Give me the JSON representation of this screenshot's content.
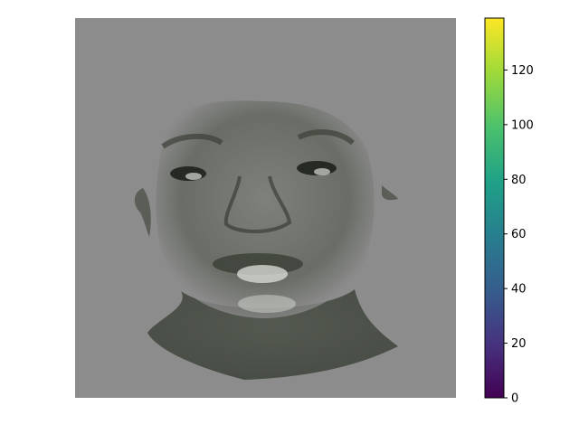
{
  "chart_data": {
    "type": "heatmap",
    "title": "",
    "xlabel": "",
    "ylabel": "",
    "axes_visible": false,
    "image_description_hidden": true,
    "background_value_gray": "#8c8c8c",
    "colorbar": {
      "colormap": "viridis",
      "range": [
        0,
        139
      ],
      "ticks": [
        0,
        20,
        40,
        60,
        80,
        100,
        120
      ],
      "tick_labels": [
        "0",
        "20",
        "40",
        "60",
        "80",
        "100",
        "120"
      ],
      "colors": [
        "#440154",
        "#46327e",
        "#365c8d",
        "#277f8e",
        "#1fa187",
        "#4ac16d",
        "#a0da39",
        "#fde725"
      ]
    }
  }
}
